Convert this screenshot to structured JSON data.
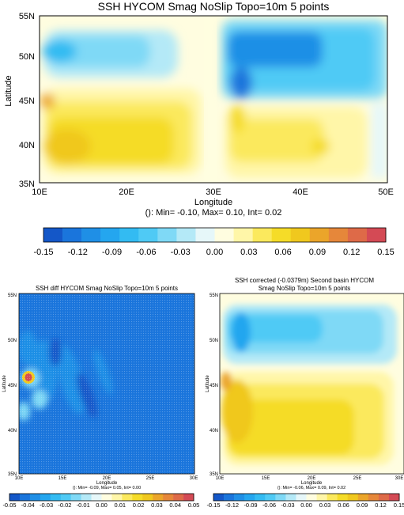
{
  "colors": {
    "scale": [
      "#1457c8",
      "#1a75dc",
      "#1f8fe6",
      "#24a6ef",
      "#33bbf2",
      "#4fcaf5",
      "#7fd9f6",
      "#b4e9f7",
      "#e6f7f9",
      "#fffde0",
      "#fff6a8",
      "#fbe95d",
      "#f5dc28",
      "#f0c81e",
      "#eba52a",
      "#e6873a",
      "#de6a48",
      "#d44a55"
    ],
    "plot_border": "#000000"
  },
  "chart_data": [
    {
      "type": "heatmap",
      "title": "SSH HYCOM Smag NoSlip Topo=10m 5 points",
      "xlabel": "Longitude",
      "ylabel": "Latitude",
      "xlim": [
        10,
        50
      ],
      "ylim": [
        35,
        55
      ],
      "x_ticks": [
        "10E",
        "20E",
        "30E",
        "40E",
        "50E"
      ],
      "y_ticks": [
        "35N",
        "40N",
        "45N",
        "50N",
        "55N"
      ],
      "stats": "(): Min= -0.10, Max= 0.10, Int= 0.02",
      "colorbar_ticks": [
        "-0.15",
        "-0.12",
        "-0.09",
        "-0.06",
        "-0.03",
        "0.00",
        "0.03",
        "0.06",
        "0.09",
        "0.12",
        "0.15"
      ],
      "colorbar_range": [
        -0.15,
        0.15
      ]
    },
    {
      "type": "heatmap",
      "title": "SSH diff HYCOM Smag NoSlip Topo=10m 5 points",
      "xlabel": "Longitude",
      "ylabel": "Latitude",
      "xlim": [
        10,
        30
      ],
      "ylim": [
        35,
        55
      ],
      "x_ticks": [
        "10E",
        "15E",
        "20E",
        "25E",
        "30E"
      ],
      "y_ticks": [
        "35N",
        "40N",
        "45N",
        "50N",
        "55N"
      ],
      "stats": "(): Min= -0.09, Max= 0.05, Int= 0.00",
      "colorbar_ticks": [
        "-0.05",
        "-0.04",
        "-0.03",
        "-0.02",
        "-0.01",
        "0.00",
        "0.01",
        "0.02",
        "0.03",
        "0.04",
        "0.05"
      ],
      "colorbar_range": [
        -0.05,
        0.05
      ]
    },
    {
      "type": "heatmap",
      "title": "SSH corrected (-0.0379m) Second basin HYCOM",
      "title_line2": "Smag NoSlip Topo=10m 5 points",
      "xlabel": "Longitude",
      "ylabel": "Latitude",
      "xlim": [
        10,
        30
      ],
      "ylim": [
        35,
        55
      ],
      "x_ticks": [
        "10E",
        "15E",
        "20E",
        "25E",
        "30E"
      ],
      "y_ticks": [
        "35N",
        "40N",
        "45N",
        "50N",
        "55N"
      ],
      "stats": "(): Min= -0.06, Max= 0.09, Int= 0.02",
      "colorbar_ticks": [
        "-0.15",
        "-0.12",
        "-0.09",
        "-0.06",
        "-0.03",
        "0.00",
        "0.03",
        "0.06",
        "0.09",
        "0.12",
        "0.15"
      ],
      "colorbar_range": [
        -0.15,
        0.15
      ]
    }
  ]
}
